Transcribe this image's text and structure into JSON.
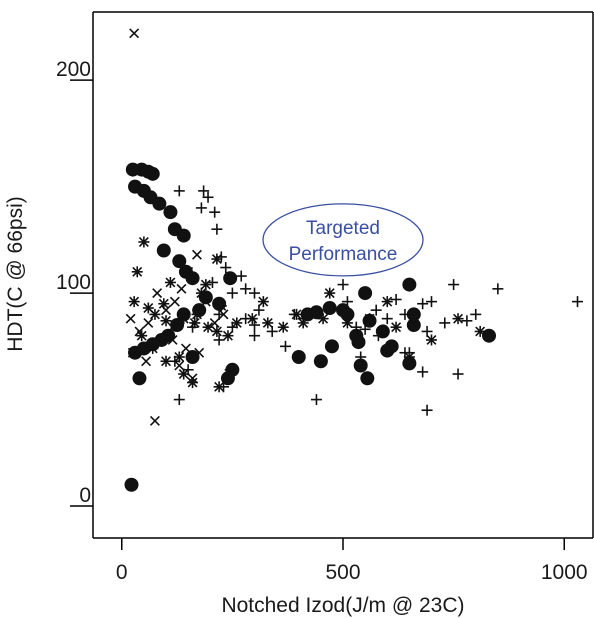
{
  "chart_data": {
    "type": "scatter",
    "title": "",
    "xlabel": "Notched Izod(J/m @ 23C)",
    "ylabel": "HDT(C @ 66psi)",
    "xlim": [
      -65,
      1065
    ],
    "ylim": [
      -15,
      232
    ],
    "xticks": [
      0,
      500,
      1000
    ],
    "yticks": [
      0,
      100,
      200
    ],
    "xtick_labels": [
      "0",
      "500",
      "1000"
    ],
    "ytick_labels": [
      "0",
      "100",
      "200"
    ],
    "annotation": {
      "lines": [
        "Targeted",
        "Performance"
      ],
      "center": [
        500,
        125
      ],
      "color": "#3a4fa0"
    },
    "series": [
      {
        "marker": "circle",
        "points": [
          [
            22,
            10
          ],
          [
            40,
            60
          ],
          [
            30,
            72
          ],
          [
            25,
            158
          ],
          [
            45,
            158
          ],
          [
            60,
            157
          ],
          [
            70,
            156
          ],
          [
            30,
            150
          ],
          [
            50,
            148
          ],
          [
            65,
            145
          ],
          [
            85,
            142
          ],
          [
            110,
            138
          ],
          [
            120,
            130
          ],
          [
            140,
            127
          ],
          [
            95,
            120
          ],
          [
            130,
            115
          ],
          [
            145,
            110
          ],
          [
            160,
            107
          ],
          [
            245,
            107
          ],
          [
            190,
            98
          ],
          [
            220,
            95
          ],
          [
            175,
            92
          ],
          [
            140,
            90
          ],
          [
            125,
            85
          ],
          [
            105,
            80
          ],
          [
            90,
            78
          ],
          [
            70,
            76
          ],
          [
            50,
            74
          ],
          [
            160,
            70
          ],
          [
            250,
            64
          ],
          [
            240,
            60
          ],
          [
            400,
            70
          ],
          [
            420,
            90
          ],
          [
            440,
            91
          ],
          [
            470,
            93
          ],
          [
            500,
            92
          ],
          [
            510,
            90
          ],
          [
            530,
            80
          ],
          [
            535,
            77
          ],
          [
            540,
            66
          ],
          [
            555,
            60
          ],
          [
            590,
            82
          ],
          [
            600,
            73
          ],
          [
            610,
            75
          ],
          [
            650,
            67
          ],
          [
            660,
            85
          ],
          [
            660,
            90
          ],
          [
            650,
            104
          ],
          [
            830,
            80
          ],
          [
            450,
            68
          ],
          [
            560,
            87
          ],
          [
            475,
            75
          ],
          [
            550,
            100
          ]
        ]
      },
      {
        "marker": "plus",
        "points": [
          [
            130,
            148
          ],
          [
            185,
            148
          ],
          [
            195,
            145
          ],
          [
            180,
            140
          ],
          [
            210,
            138
          ],
          [
            215,
            130
          ],
          [
            225,
            117
          ],
          [
            235,
            112
          ],
          [
            205,
            105
          ],
          [
            250,
            100
          ],
          [
            270,
            108
          ],
          [
            280,
            102
          ],
          [
            300,
            100
          ],
          [
            310,
            92
          ],
          [
            280,
            88
          ],
          [
            250,
            84
          ],
          [
            220,
            90
          ],
          [
            220,
            78
          ],
          [
            300,
            80
          ],
          [
            300,
            85
          ],
          [
            340,
            82
          ],
          [
            370,
            75
          ],
          [
            390,
            90
          ],
          [
            410,
            88
          ],
          [
            440,
            50
          ],
          [
            500,
            104
          ],
          [
            510,
            96
          ],
          [
            530,
            84
          ],
          [
            550,
            83
          ],
          [
            575,
            92
          ],
          [
            600,
            88
          ],
          [
            620,
            97
          ],
          [
            640,
            90
          ],
          [
            650,
            72
          ],
          [
            680,
            95
          ],
          [
            690,
            82
          ],
          [
            700,
            96
          ],
          [
            730,
            86
          ],
          [
            750,
            104
          ],
          [
            780,
            87
          ],
          [
            800,
            90
          ],
          [
            850,
            102
          ],
          [
            1030,
            96
          ],
          [
            680,
            63
          ],
          [
            760,
            62
          ],
          [
            690,
            45
          ],
          [
            540,
            70
          ],
          [
            130,
            50
          ],
          [
            245,
            64
          ],
          [
            230,
            56
          ],
          [
            160,
            84
          ],
          [
            120,
            68
          ],
          [
            150,
            64
          ],
          [
            640,
            72
          ],
          [
            580,
            80
          ]
        ]
      },
      {
        "marker": "star",
        "points": [
          [
            28,
            96
          ],
          [
            60,
            93
          ],
          [
            75,
            90
          ],
          [
            100,
            87
          ],
          [
            120,
            85
          ],
          [
            140,
            88
          ],
          [
            165,
            86
          ],
          [
            195,
            84
          ],
          [
            215,
            82
          ],
          [
            240,
            80
          ],
          [
            260,
            86
          ],
          [
            295,
            88
          ],
          [
            330,
            86
          ],
          [
            365,
            84
          ],
          [
            395,
            90
          ],
          [
            455,
            88
          ],
          [
            510,
            86
          ],
          [
            560,
            88
          ],
          [
            620,
            84
          ],
          [
            650,
            70
          ],
          [
            700,
            78
          ],
          [
            760,
            88
          ],
          [
            810,
            82
          ],
          [
            70,
            74
          ],
          [
            100,
            68
          ],
          [
            140,
            62
          ],
          [
            160,
            58
          ],
          [
            220,
            56
          ],
          [
            320,
            96
          ],
          [
            410,
            86
          ],
          [
            470,
            100
          ],
          [
            215,
            116
          ],
          [
            190,
            104
          ],
          [
            180,
            100
          ],
          [
            225,
            94
          ],
          [
            50,
            124
          ],
          [
            35,
            110
          ],
          [
            45,
            80
          ],
          [
            130,
            70
          ],
          [
            170,
            90
          ],
          [
            95,
            95
          ],
          [
            110,
            105
          ],
          [
            600,
            96
          ]
        ]
      },
      {
        "marker": "x",
        "points": [
          [
            28,
            222
          ],
          [
            75,
            40
          ],
          [
            20,
            88
          ],
          [
            25,
            72
          ],
          [
            40,
            82
          ],
          [
            55,
            68
          ],
          [
            60,
            86
          ],
          [
            80,
            100
          ],
          [
            100,
            92
          ],
          [
            115,
            78
          ],
          [
            130,
            66
          ],
          [
            145,
            74
          ],
          [
            160,
            60
          ],
          [
            175,
            72
          ],
          [
            120,
            96
          ],
          [
            135,
            102
          ],
          [
            150,
            110
          ],
          [
            170,
            118
          ],
          [
            190,
            96
          ],
          [
            210,
            86
          ],
          [
            230,
            90
          ]
        ]
      }
    ]
  }
}
